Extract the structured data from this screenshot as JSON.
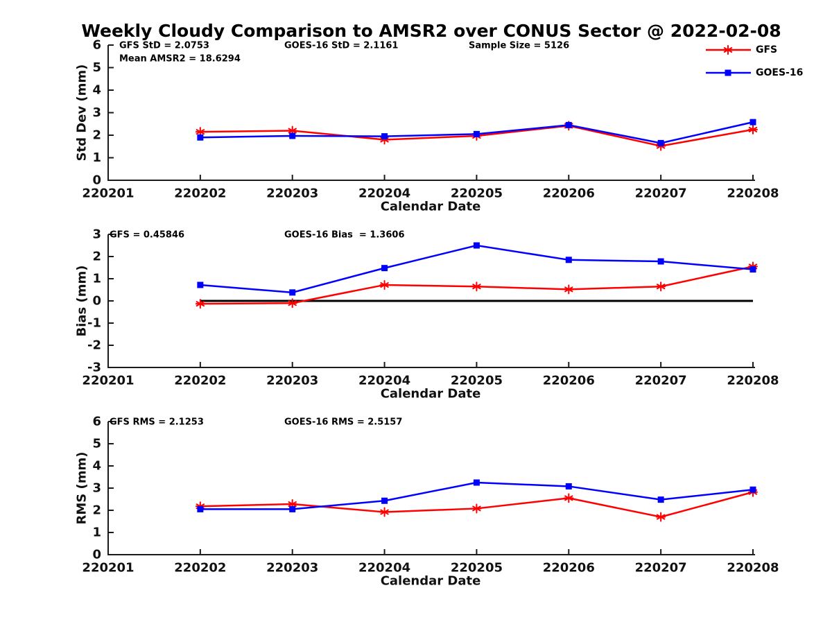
{
  "title": "Weekly Cloudy Comparison to AMSR2 over CONUS Sector @ 2022-02-08",
  "colors": {
    "gfs": "#ff0000",
    "goes16": "#0000ff",
    "axis": "#1a1a1a",
    "annotation": "#000000",
    "zero_line": "#000000",
    "background": "#ffffff"
  },
  "legend": {
    "position": "top-right",
    "entries": [
      {
        "label": "GFS",
        "color": "#ff0000",
        "marker": "asterisk"
      },
      {
        "label": "GOES-16",
        "color": "#0000ff",
        "marker": "square"
      }
    ]
  },
  "chart_data": [
    {
      "type": "line",
      "name": "std-dev",
      "title": "",
      "xlabel": "Calendar Date",
      "ylabel": "Std Dev (mm)",
      "ylim": [
        0,
        6
      ],
      "yticks": [
        0,
        1,
        2,
        3,
        4,
        5,
        6
      ],
      "grid": false,
      "categories": [
        "220201",
        "220202",
        "220203",
        "220204",
        "220205",
        "220206",
        "220207",
        "220208"
      ],
      "zero_line": false,
      "annotations": [
        {
          "text": "GFS StD = 2.0753",
          "slot": "left"
        },
        {
          "text": "Mean AMSR2 = 18.6294",
          "slot": "left2"
        },
        {
          "text": "GOES-16 StD = 2.1161",
          "slot": "mid"
        },
        {
          "text": "Sample Size = 5126",
          "slot": "right"
        }
      ],
      "series": [
        {
          "name": "GFS",
          "color": "#ff0000",
          "marker": "asterisk",
          "x": [
            "220202",
            "220203",
            "220204",
            "220205",
            "220206",
            "220207",
            "220208"
          ],
          "values": [
            2.15,
            2.2,
            1.8,
            1.97,
            2.42,
            1.52,
            2.25
          ]
        },
        {
          "name": "GOES-16",
          "color": "#0000ff",
          "marker": "square",
          "x": [
            "220202",
            "220203",
            "220204",
            "220205",
            "220206",
            "220207",
            "220208"
          ],
          "values": [
            1.9,
            1.97,
            1.95,
            2.05,
            2.45,
            1.65,
            2.58
          ]
        }
      ]
    },
    {
      "type": "line",
      "name": "bias",
      "title": "",
      "xlabel": "Calendar Date",
      "ylabel": "Bias (mm)",
      "ylim": [
        -3,
        3
      ],
      "yticks": [
        -3,
        -2,
        -1,
        0,
        1,
        2,
        3
      ],
      "grid": false,
      "categories": [
        "220201",
        "220202",
        "220203",
        "220204",
        "220205",
        "220206",
        "220207",
        "220208"
      ],
      "zero_line": true,
      "annotations": [
        {
          "text": "GFS = 0.45846",
          "slot": "left"
        },
        {
          "text": "GOES-16 Bias  = 1.3606",
          "slot": "mid"
        }
      ],
      "series": [
        {
          "name": "GFS",
          "color": "#ff0000",
          "marker": "asterisk",
          "x": [
            "220202",
            "220203",
            "220204",
            "220205",
            "220206",
            "220207",
            "220208"
          ],
          "values": [
            -0.13,
            -0.1,
            0.72,
            0.65,
            0.52,
            0.65,
            1.55
          ]
        },
        {
          "name": "GOES-16",
          "color": "#0000ff",
          "marker": "square",
          "x": [
            "220202",
            "220203",
            "220204",
            "220205",
            "220206",
            "220207",
            "220208"
          ],
          "values": [
            0.72,
            0.38,
            1.48,
            2.5,
            1.85,
            1.78,
            1.42
          ]
        }
      ]
    },
    {
      "type": "line",
      "name": "rms",
      "title": "",
      "xlabel": "Calendar Date",
      "ylabel": "RMS (mm)",
      "ylim": [
        0,
        6
      ],
      "yticks": [
        0,
        1,
        2,
        3,
        4,
        5,
        6
      ],
      "grid": false,
      "categories": [
        "220201",
        "220202",
        "220203",
        "220204",
        "220205",
        "220206",
        "220207",
        "220208"
      ],
      "zero_line": false,
      "annotations": [
        {
          "text": "GFS RMS = 2.1253",
          "slot": "left"
        },
        {
          "text": "GOES-16 RMS = 2.5157",
          "slot": "mid"
        }
      ],
      "series": [
        {
          "name": "GFS",
          "color": "#ff0000",
          "marker": "asterisk",
          "x": [
            "220202",
            "220203",
            "220204",
            "220205",
            "220206",
            "220207",
            "220208"
          ],
          "values": [
            2.18,
            2.28,
            1.92,
            2.08,
            2.55,
            1.7,
            2.82
          ]
        },
        {
          "name": "GOES-16",
          "color": "#0000ff",
          "marker": "square",
          "x": [
            "220202",
            "220203",
            "220204",
            "220205",
            "220206",
            "220207",
            "220208"
          ],
          "values": [
            2.05,
            2.05,
            2.43,
            3.25,
            3.08,
            2.48,
            2.93
          ]
        }
      ]
    }
  ]
}
